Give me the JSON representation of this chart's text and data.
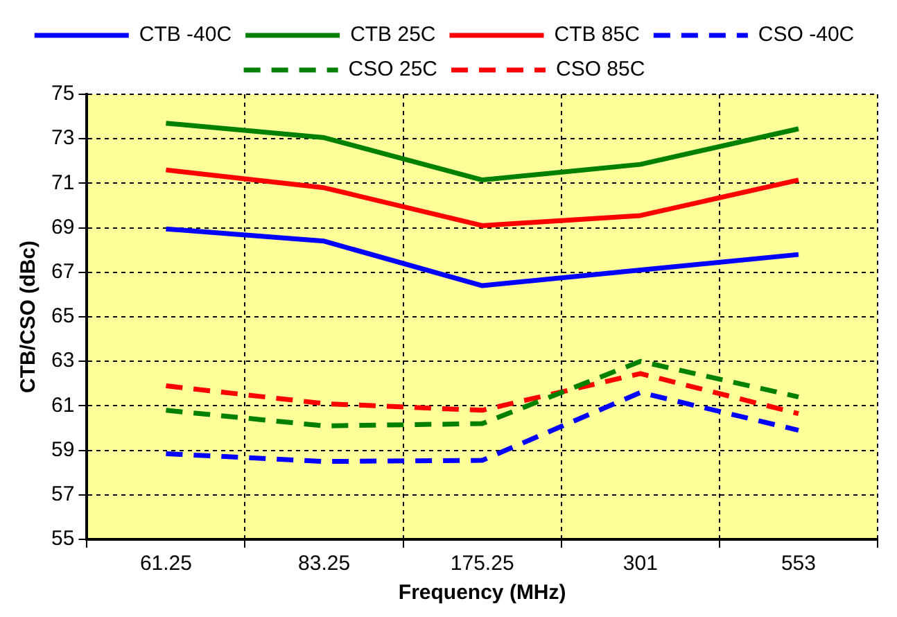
{
  "chart_data": {
    "type": "line",
    "xlabel": "Frequency (MHz)",
    "ylabel": "CTB/CSO (dBc)",
    "categories": [
      "61.25",
      "83.25",
      "175.25",
      "301",
      "553"
    ],
    "ylim": [
      55,
      75
    ],
    "yticks": [
      55,
      57,
      59,
      61,
      63,
      65,
      67,
      69,
      71,
      73,
      75
    ],
    "grid": true,
    "legend": "top",
    "marker": "none",
    "series": [
      {
        "name": "CTB -40C",
        "color": "#0000ff",
        "line_style": "solid",
        "values": [
          68.95,
          68.4,
          66.4,
          67.1,
          67.8
        ]
      },
      {
        "name": "CTB 25C",
        "color": "#008000",
        "line_style": "solid",
        "values": [
          73.7,
          73.05,
          71.15,
          71.85,
          73.45
        ]
      },
      {
        "name": "CTB 85C",
        "color": "#ff0000",
        "line_style": "solid",
        "values": [
          71.6,
          70.8,
          69.1,
          69.55,
          71.15
        ]
      },
      {
        "name": "CSO -40C",
        "color": "#0000ff",
        "line_style": "dashed",
        "values": [
          58.85,
          58.5,
          58.55,
          61.6,
          59.9
        ]
      },
      {
        "name": "CSO 25C",
        "color": "#008000",
        "line_style": "dashed",
        "values": [
          60.8,
          60.1,
          60.2,
          63.0,
          61.4
        ]
      },
      {
        "name": "CSO 85C",
        "color": "#ff0000",
        "line_style": "dashed",
        "values": [
          61.9,
          61.1,
          60.8,
          62.45,
          60.65
        ]
      }
    ]
  }
}
